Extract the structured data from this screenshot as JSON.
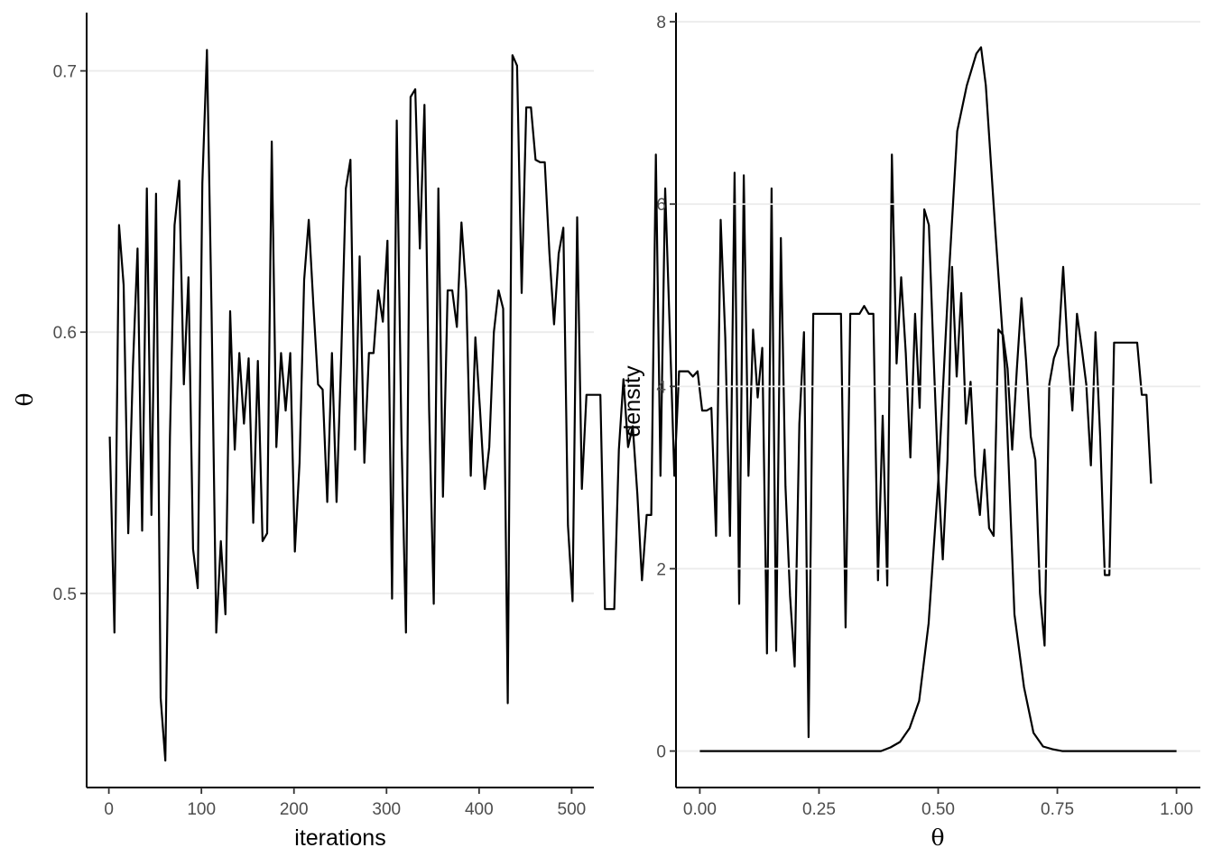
{
  "chart_data": [
    {
      "type": "line",
      "xlabel": "iterations",
      "ylabel": "θ",
      "xlim": [
        -24,
        524
      ],
      "ylim": [
        0.4257,
        0.7223
      ],
      "x_ticks": [
        0,
        100,
        200,
        300,
        400,
        500
      ],
      "x_tick_labels": [
        "0",
        "100",
        "200",
        "300",
        "400",
        "500"
      ],
      "y_ticks": [
        0.5,
        0.6,
        0.7
      ],
      "y_tick_labels": [
        "0.5",
        "0.6",
        "0.7"
      ],
      "grid": "horizontal major",
      "legend": "none",
      "line_color": "#000000",
      "step": 5,
      "x_start": 1,
      "values": [
        0.56,
        0.485,
        0.641,
        0.618,
        0.523,
        0.587,
        0.632,
        0.524,
        0.655,
        0.53,
        0.653,
        0.46,
        0.436,
        0.56,
        0.641,
        0.658,
        0.58,
        0.621,
        0.517,
        0.502,
        0.657,
        0.708,
        0.608,
        0.485,
        0.52,
        0.492,
        0.608,
        0.555,
        0.592,
        0.565,
        0.59,
        0.527,
        0.589,
        0.52,
        0.523,
        0.673,
        0.556,
        0.592,
        0.57,
        0.592,
        0.516,
        0.55,
        0.62,
        0.643,
        0.61,
        0.58,
        0.578,
        0.535,
        0.592,
        0.535,
        0.59,
        0.655,
        0.666,
        0.555,
        0.629,
        0.55,
        0.592,
        0.592,
        0.616,
        0.604,
        0.635,
        0.498,
        0.681,
        0.562,
        0.485,
        0.69,
        0.693,
        0.632,
        0.687,
        0.57,
        0.496,
        0.655,
        0.537,
        0.616,
        0.616,
        0.602,
        0.642,
        0.616,
        0.545,
        0.598,
        0.57,
        0.54,
        0.556,
        0.6,
        0.616,
        0.609,
        0.458,
        0.706,
        0.702,
        0.615,
        0.686,
        0.686,
        0.666,
        0.665,
        0.665,
        0.63,
        0.603,
        0.63,
        0.64,
        0.526,
        0.497,
        0.644,
        0.54,
        0.576,
        0.576,
        0.576,
        0.576,
        0.494,
        0.494,
        0.494,
        0.555,
        0.582,
        0.556,
        0.564,
        0.538,
        0.505,
        0.53,
        0.53,
        0.668,
        0.545,
        0.655,
        0.601,
        0.545,
        0.585,
        0.585,
        0.585,
        0.583,
        0.585,
        0.57,
        0.57,
        0.571,
        0.522,
        0.643,
        0.598,
        0.522,
        0.661,
        0.496,
        0.66,
        0.545,
        0.601,
        0.575,
        0.594,
        0.477,
        0.655,
        0.478,
        0.636,
        0.541,
        0.499,
        0.472,
        0.565,
        0.6,
        0.445,
        0.607,
        0.607,
        0.607,
        0.607,
        0.607,
        0.607,
        0.607,
        0.487,
        0.607,
        0.607,
        0.607,
        0.61,
        0.607,
        0.607,
        0.505,
        0.568,
        0.503,
        0.668,
        0.588,
        0.621,
        0.592,
        0.552,
        0.607,
        0.571,
        0.647,
        0.641,
        0.591,
        0.546,
        0.513,
        0.551,
        0.625,
        0.583,
        0.615,
        0.565,
        0.581,
        0.545,
        0.53,
        0.555,
        0.525,
        0.522,
        0.601,
        0.599,
        0.586,
        0.555,
        0.586,
        0.613,
        0.589,
        0.56,
        0.551,
        0.5,
        0.48,
        0.58,
        0.59,
        0.595,
        0.625,
        0.593,
        0.57,
        0.607,
        0.594,
        0.58,
        0.549,
        0.6,
        0.56,
        0.507,
        0.507,
        0.596,
        0.596,
        0.596,
        0.596,
        0.596,
        0.596,
        0.576,
        0.576,
        0.542
      ]
    },
    {
      "type": "line",
      "xlabel": "θ",
      "ylabel": "density",
      "xlim": [
        -0.05,
        1.05
      ],
      "ylim": [
        -0.4,
        8.1
      ],
      "x_ticks": [
        0,
        0.25,
        0.5,
        0.75,
        1
      ],
      "x_tick_labels": [
        "0.00",
        "0.25",
        "0.50",
        "0.75",
        "1.00"
      ],
      "y_ticks": [
        0,
        2,
        4,
        6,
        8
      ],
      "y_tick_labels": [
        "0",
        "2",
        "4",
        "6",
        "8"
      ],
      "grid": "horizontal major",
      "legend": "none",
      "line_color": "#000000",
      "x": [
        0,
        0.38,
        0.4,
        0.42,
        0.44,
        0.46,
        0.48,
        0.5,
        0.52,
        0.54,
        0.56,
        0.58,
        0.59,
        0.6,
        0.62,
        0.64,
        0.66,
        0.68,
        0.7,
        0.72,
        0.74,
        0.76,
        1
      ],
      "values": [
        0,
        0,
        0.04,
        0.1,
        0.25,
        0.55,
        1.4,
        2.95,
        5.0,
        6.8,
        7.3,
        7.65,
        7.72,
        7.3,
        5.7,
        4.2,
        1.5,
        0.7,
        0.2,
        0.05,
        0.02,
        0,
        0
      ]
    }
  ]
}
